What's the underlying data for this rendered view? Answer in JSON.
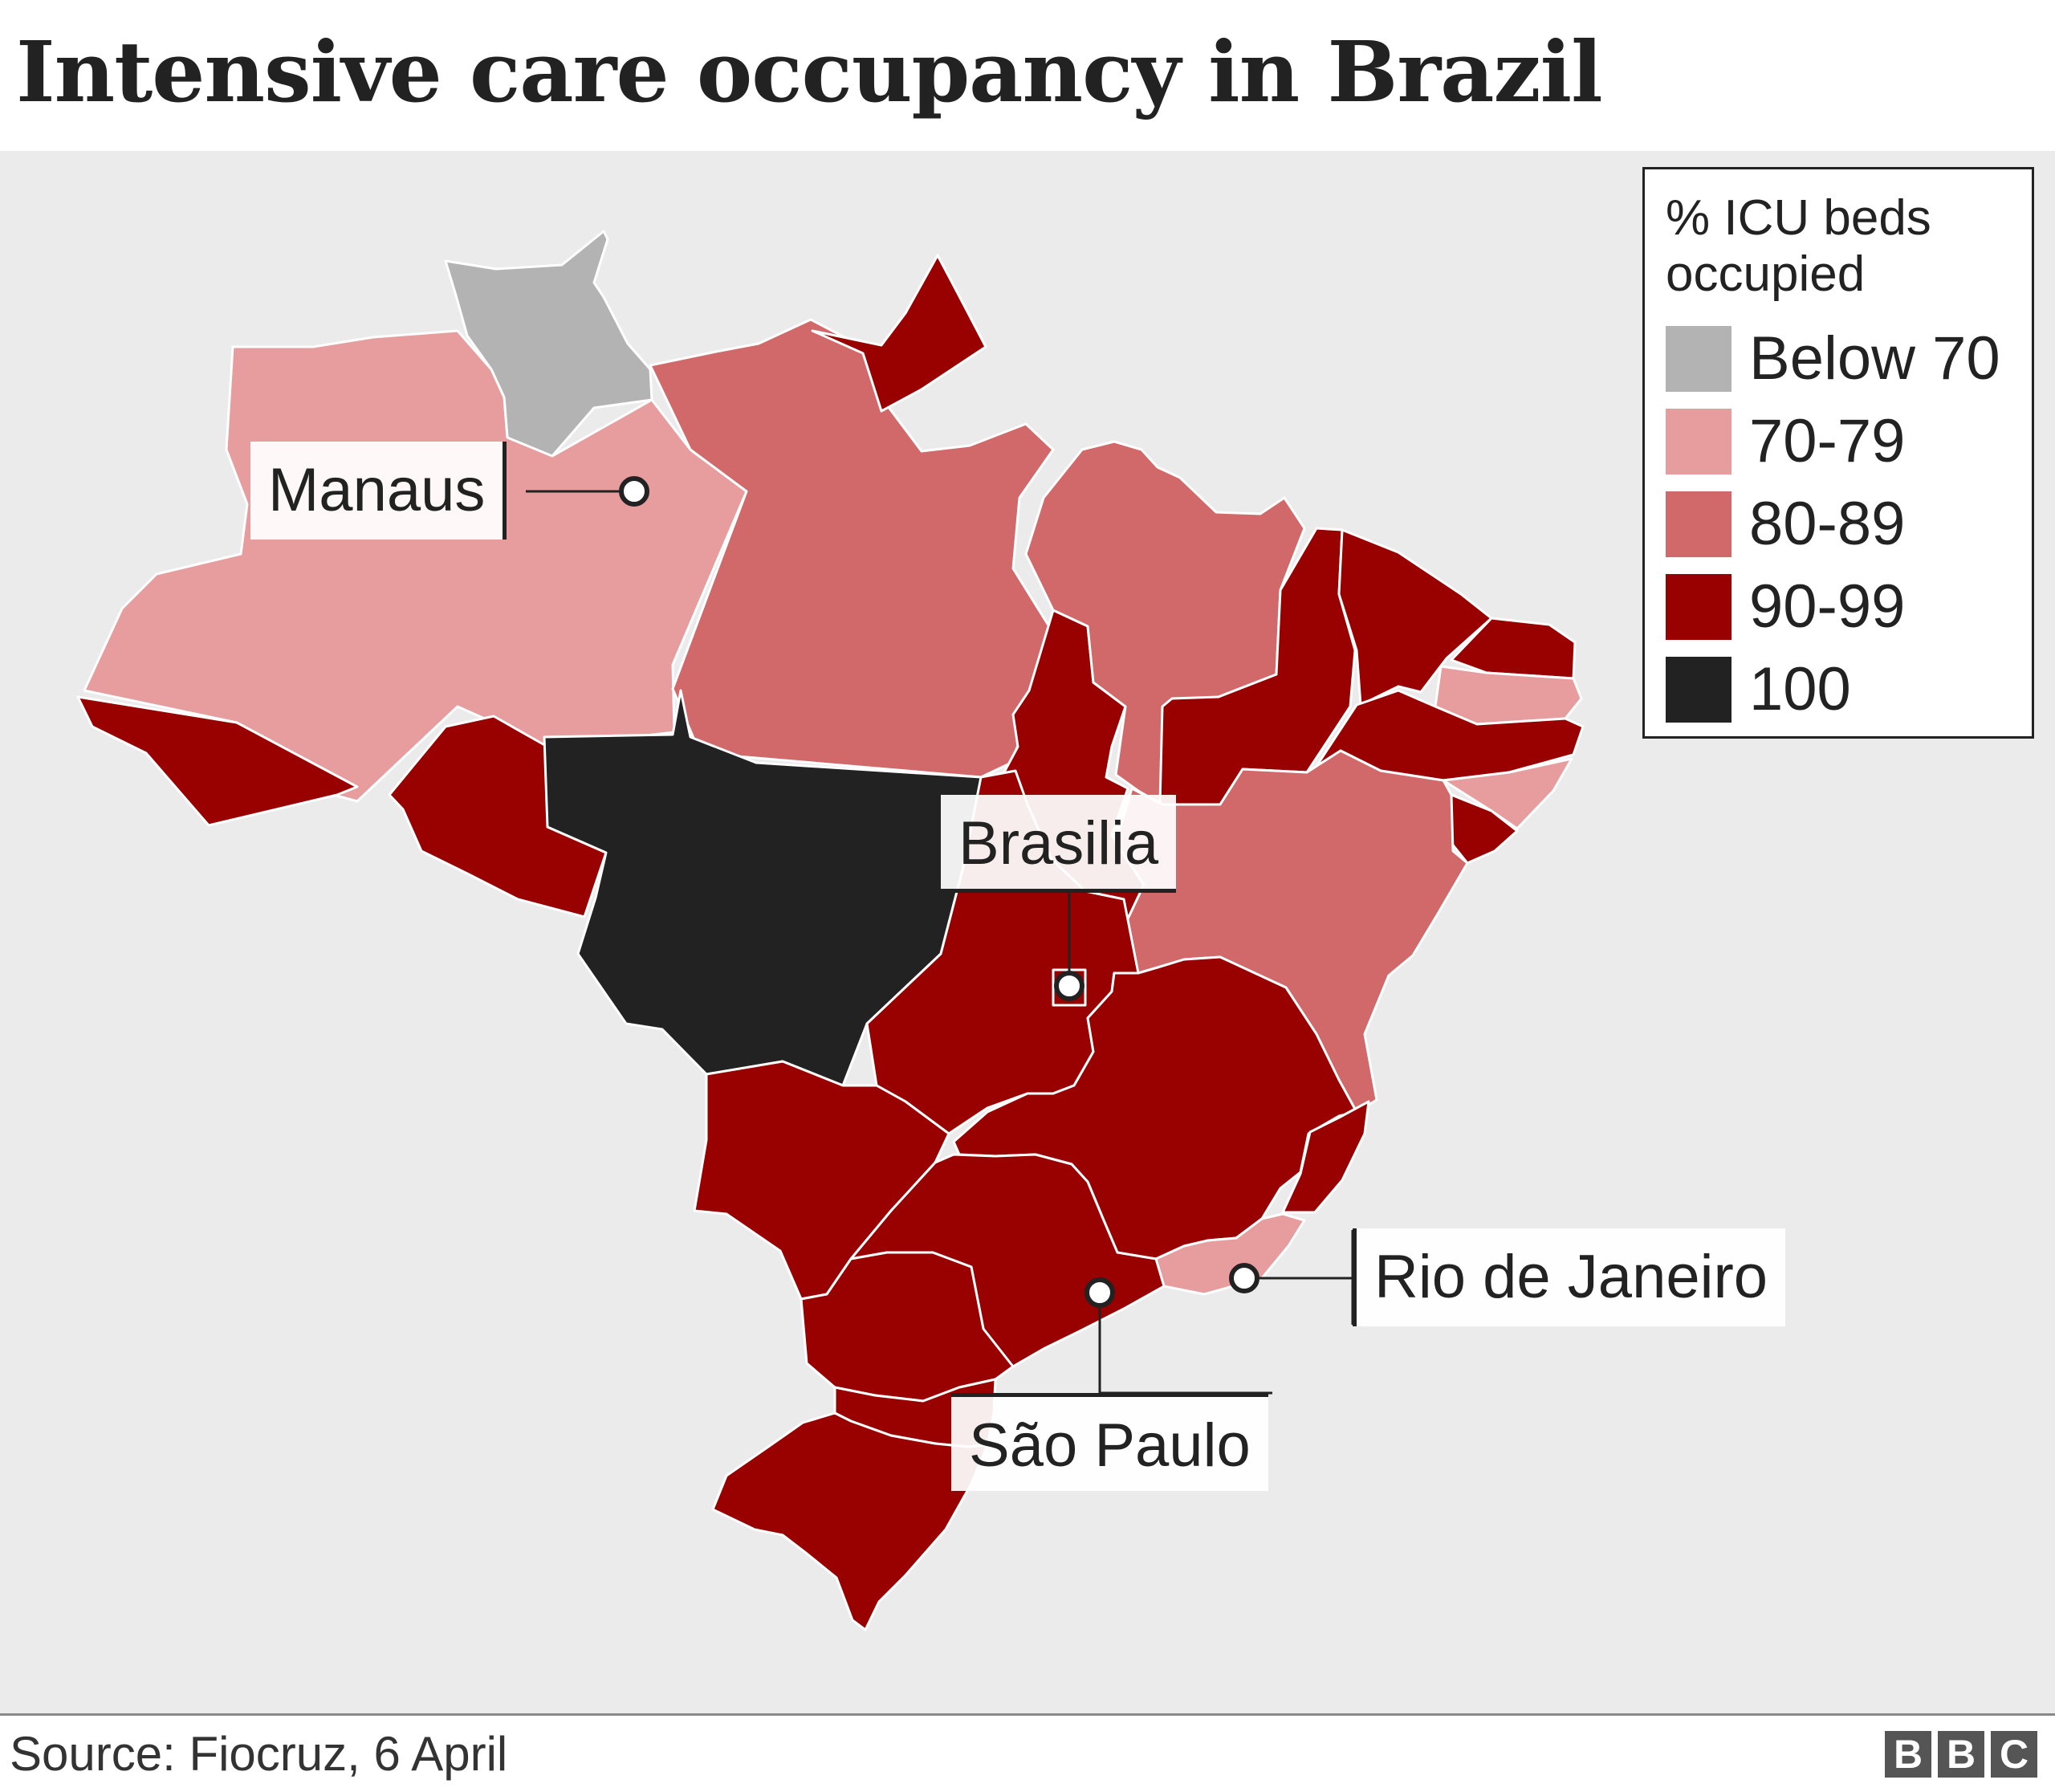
{
  "title": "Intensive care occupancy in Brazil",
  "legend": {
    "title_line1": "% ICU beds",
    "title_line2": "occupied",
    "items": [
      {
        "label": "Below 70",
        "color": "#b3b3b3"
      },
      {
        "label": "70-79",
        "color": "#e79d9e"
      },
      {
        "label": "80-89",
        "color": "#d16869"
      },
      {
        "label": "90-99",
        "color": "#990000"
      },
      {
        "label": "100",
        "color": "#222222"
      }
    ]
  },
  "cities": {
    "manaus": "Manaus",
    "brasilia": "Brasilia",
    "rio": "Rio de Janeiro",
    "sao_paulo": "São Paulo"
  },
  "colors": {
    "background": "#ebebeb",
    "below70": "#b3b3b3",
    "c70_79": "#e79d9e",
    "c80_89": "#d16869",
    "c90_99": "#990000",
    "c100": "#222222"
  },
  "footer": {
    "source": "Source: Fiocruz, 6 April",
    "logo": [
      "B",
      "B",
      "C"
    ]
  }
}
